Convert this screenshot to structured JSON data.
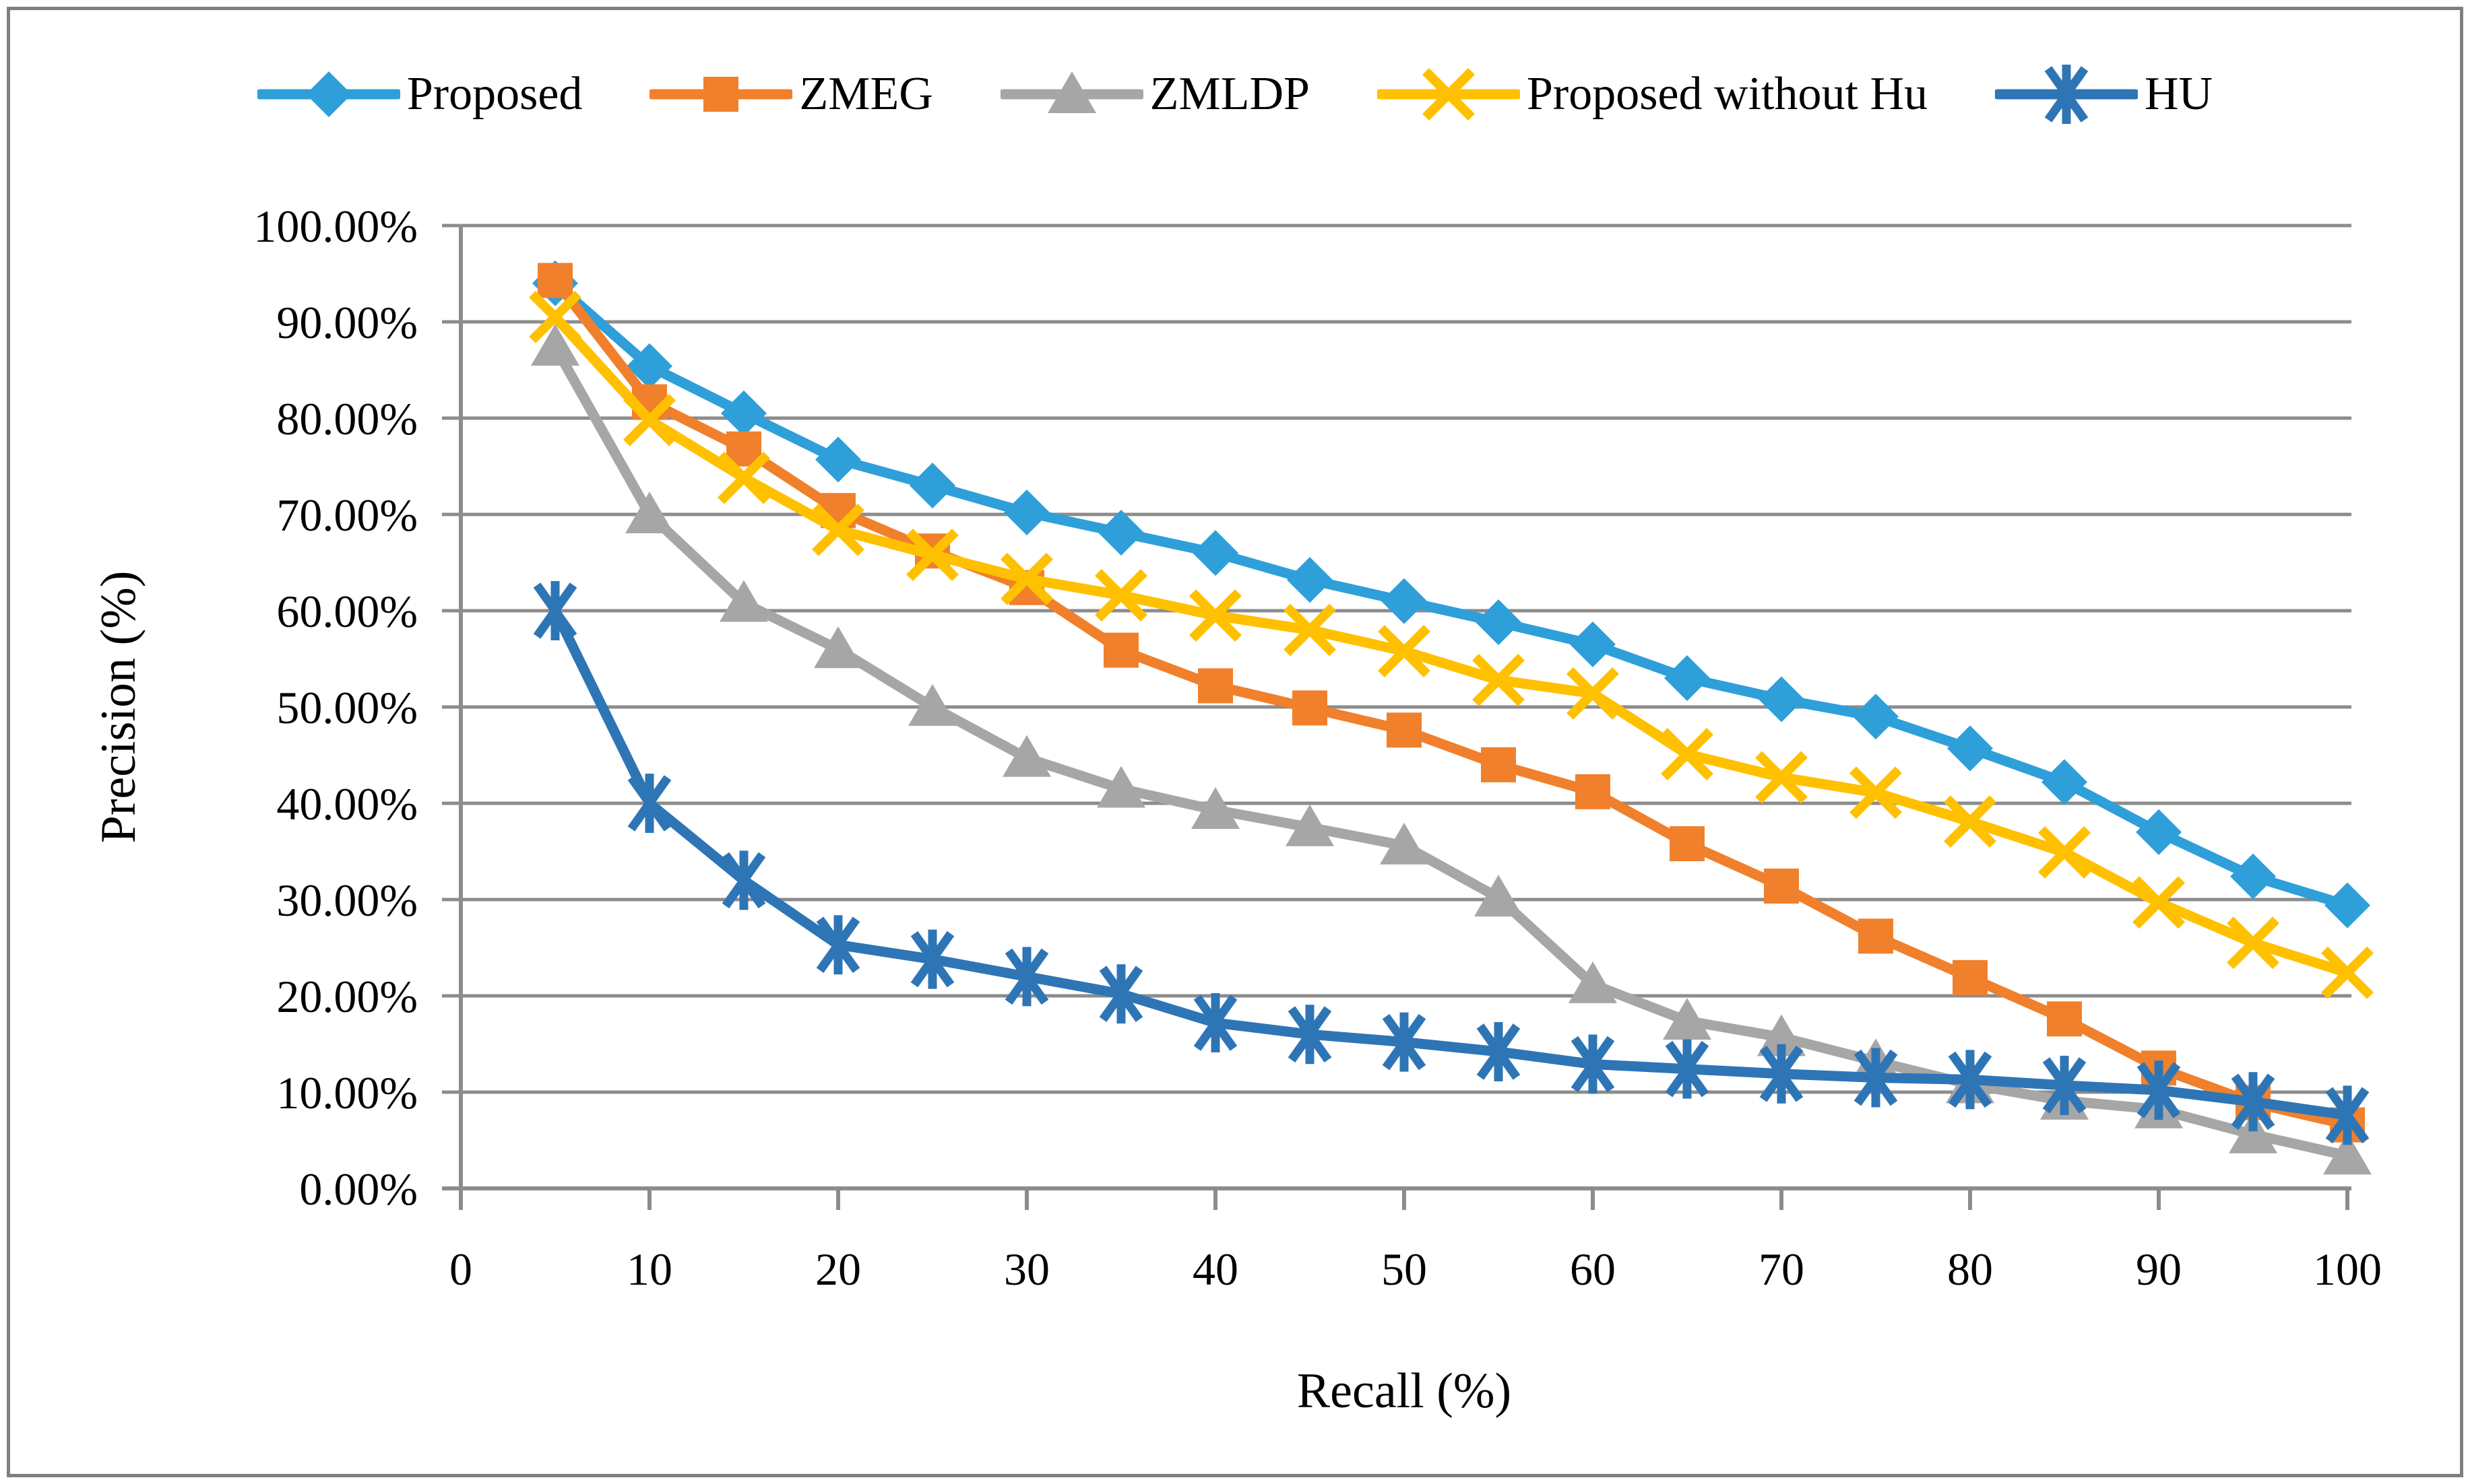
{
  "figure": {
    "background": "#FFFFFF",
    "border_color": "#7F7F7F"
  },
  "legend": {
    "position": "top",
    "items": [
      {
        "label": "Proposed",
        "marker": "diamond",
        "color": "#2E9FD9"
      },
      {
        "label": "ZMEG",
        "marker": "square",
        "color": "#F0802B"
      },
      {
        "label": "ZMLDP",
        "marker": "triangle",
        "color": "#A6A6A6"
      },
      {
        "label": "Proposed without Hu",
        "marker": "x",
        "color": "#FFC000"
      },
      {
        "label": "HU",
        "marker": "asterisk",
        "color": "#2E75B6"
      }
    ]
  },
  "axes": {
    "x": {
      "title": "Recall (%)",
      "ticks": [
        0,
        10,
        20,
        30,
        40,
        50,
        60,
        70,
        80,
        90,
        100
      ],
      "tick_labels": [
        "0",
        "10",
        "20",
        "30",
        "40",
        "50",
        "60",
        "70",
        "80",
        "90",
        "100"
      ]
    },
    "y": {
      "title": "Precision (%)",
      "ticks": [
        0,
        10,
        20,
        30,
        40,
        50,
        60,
        70,
        80,
        90,
        100
      ],
      "tick_labels": [
        "0.00%",
        "10.00%",
        "20.00%",
        "30.00%",
        "40.00%",
        "50.00%",
        "60.00%",
        "70.00%",
        "80.00%",
        "90.00%",
        "100.00%"
      ]
    }
  },
  "chart_data": {
    "type": "line",
    "title": "",
    "xlabel": "Recall (%)",
    "ylabel": "Precision (%)",
    "xlim": [
      0,
      100
    ],
    "ylim": [
      0,
      100
    ],
    "grid": true,
    "legend_position": "top",
    "x": [
      5,
      10,
      15,
      20,
      25,
      30,
      35,
      40,
      45,
      50,
      55,
      60,
      65,
      70,
      75,
      80,
      85,
      90,
      95,
      100
    ],
    "series": [
      {
        "name": "Proposed",
        "marker": "diamond",
        "color": "#2E9FD9",
        "values": [
          94.0,
          85.4,
          80.5,
          75.7,
          73.0,
          70.2,
          68.1,
          66.0,
          63.2,
          61.0,
          58.8,
          56.5,
          53.0,
          50.8,
          49.0,
          45.7,
          42.2,
          37.0,
          32.4,
          29.4
        ]
      },
      {
        "name": "ZMEG",
        "marker": "square",
        "color": "#F0802B",
        "values": [
          94.3,
          81.7,
          76.8,
          70.4,
          66.2,
          62.4,
          55.9,
          52.2,
          49.9,
          47.6,
          44.0,
          41.2,
          35.8,
          31.4,
          26.2,
          21.9,
          17.6,
          12.5,
          8.9,
          6.6
        ]
      },
      {
        "name": "ZMLDP",
        "marker": "triangle",
        "color": "#A6A6A6",
        "values": [
          87.4,
          70.0,
          60.8,
          56.0,
          50.0,
          44.7,
          41.5,
          39.3,
          37.5,
          35.6,
          30.2,
          21.2,
          17.4,
          15.7,
          13.2,
          10.8,
          9.1,
          8.2,
          5.6,
          3.4
        ]
      },
      {
        "name": "Proposed without Hu",
        "marker": "x",
        "color": "#FFC000",
        "values": [
          90.5,
          79.8,
          73.8,
          68.4,
          65.8,
          63.3,
          61.6,
          59.5,
          58.0,
          55.8,
          52.8,
          51.4,
          45.1,
          42.7,
          41.1,
          38.1,
          34.9,
          29.7,
          25.5,
          22.4
        ]
      },
      {
        "name": "HU",
        "marker": "asterisk",
        "color": "#2E75B6",
        "values": [
          60.0,
          40.0,
          32.0,
          25.3,
          23.8,
          22.0,
          20.2,
          17.2,
          16.0,
          15.2,
          14.2,
          12.9,
          12.4,
          11.9,
          11.5,
          11.3,
          10.7,
          10.2,
          9.0,
          7.6
        ]
      }
    ]
  },
  "style": {
    "gridline_color": "#8C8C8C",
    "axis_color": "#8C8C8C",
    "text_color": "#000000"
  }
}
